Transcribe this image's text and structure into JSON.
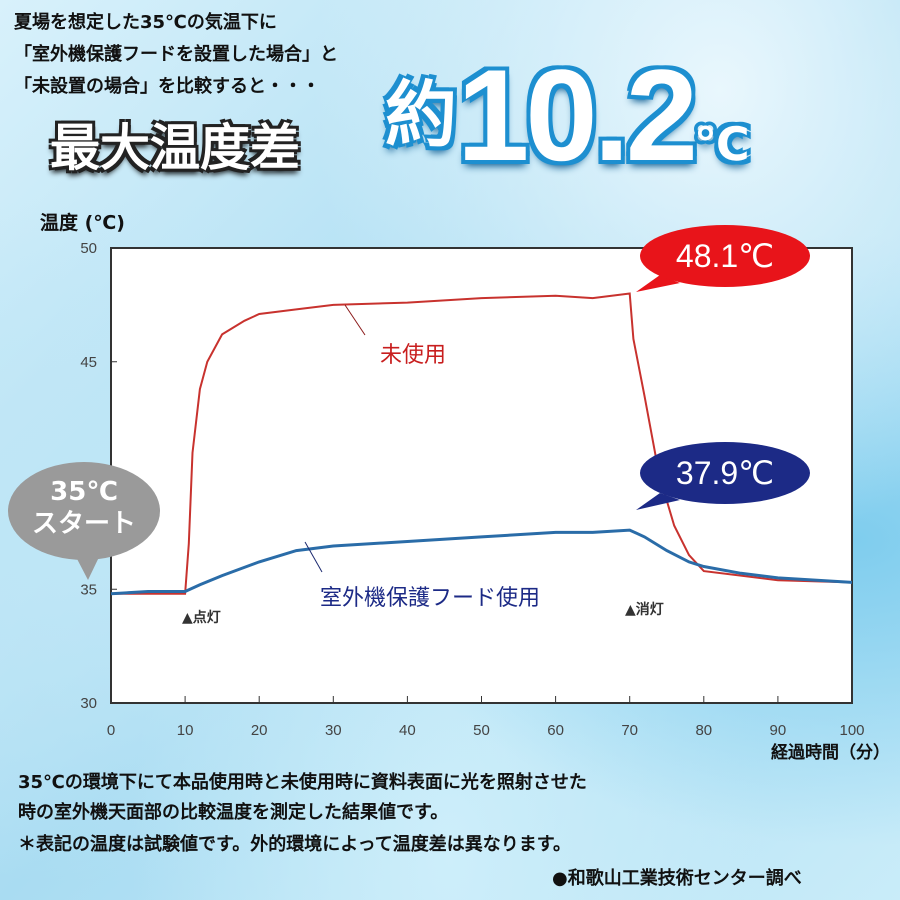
{
  "intro_lines": [
    "夏場を想定した35℃の気温下に",
    "「室外機保護フードを設置した場合」と",
    "「未設置の場合」を比較すると・・・"
  ],
  "headline": "最大温度差",
  "big": {
    "prefix": "約",
    "number": "10.2",
    "unit": "℃"
  },
  "colors": {
    "unused": "#c8322e",
    "hood": "#2a6ca8",
    "red_bubble": "#e8141a",
    "blue_bubble": "#1c2a86",
    "start_bubble": "#9a9a9a"
  },
  "bubbles": {
    "red": "48.1℃",
    "blue": "37.9℃",
    "start_line1": "35℃",
    "start_line2": "スタート"
  },
  "chart_data": {
    "type": "line",
    "ylabel": "温度 (℃)",
    "xlabel": "経過時間（分）",
    "xlim": [
      0,
      100
    ],
    "ylim": [
      30,
      50
    ],
    "xticks": [
      0,
      10,
      20,
      30,
      40,
      50,
      60,
      70,
      80,
      90,
      100
    ],
    "yticks": [
      30,
      35,
      45,
      50
    ],
    "grid": false,
    "series": [
      {
        "name": "未使用",
        "x": [
          0,
          5,
          10,
          10.5,
          11,
          12,
          13,
          15,
          18,
          20,
          25,
          30,
          40,
          50,
          60,
          65,
          70,
          70.5,
          72,
          74,
          76,
          78,
          80,
          85,
          90,
          100
        ],
        "y": [
          34.8,
          34.8,
          34.8,
          37,
          41,
          43.8,
          45,
          46.2,
          46.8,
          47.1,
          47.3,
          47.5,
          47.6,
          47.8,
          47.9,
          47.8,
          48.0,
          46,
          43.5,
          40,
          37.8,
          36.5,
          35.8,
          35.6,
          35.4,
          35.3
        ]
      },
      {
        "name": "室外機保護フード使用",
        "x": [
          0,
          5,
          10,
          12,
          15,
          20,
          25,
          30,
          40,
          50,
          60,
          65,
          70,
          72,
          75,
          78,
          80,
          85,
          90,
          100
        ],
        "y": [
          34.8,
          34.9,
          34.9,
          35.2,
          35.6,
          36.2,
          36.7,
          36.9,
          37.1,
          37.3,
          37.5,
          37.5,
          37.6,
          37.3,
          36.7,
          36.2,
          36.0,
          35.7,
          35.5,
          35.3
        ]
      }
    ],
    "annotations": [
      "▲点灯",
      "▲消灯"
    ]
  },
  "footer": [
    "35℃の環境下にて本品使用時と未使用時に資料表面に光を照射させた",
    "時の室外機天面部の比較温度を測定した結果値です。",
    "＊表記の温度は試験値です。外的環境によって温度差は異なります。",
    "●和歌山工業技術センター調べ"
  ]
}
